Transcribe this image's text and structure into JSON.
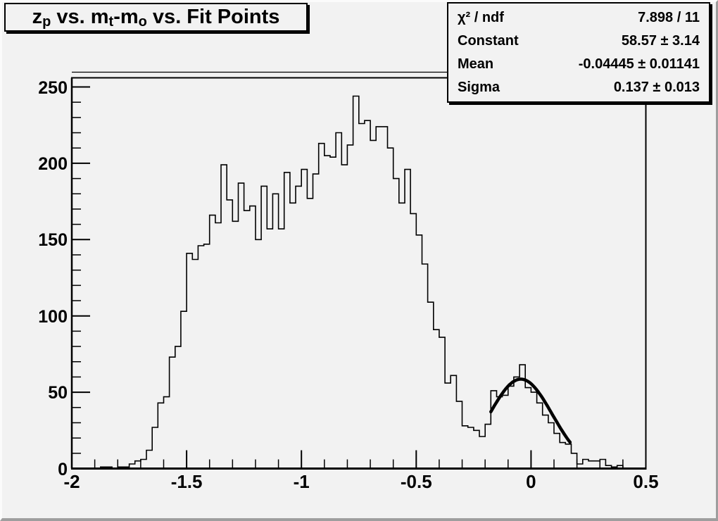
{
  "colors": {
    "background": "#f2f2f2",
    "foreground": "#000000",
    "bevel_dark": "#9e9e9e",
    "bevel_light": "#fbfbfb"
  },
  "title": {
    "full_text": "z_p vs. m_t-m_o vs. Fit Points",
    "parts": [
      {
        "text": "z",
        "sub": false
      },
      {
        "text": "p",
        "sub": true
      },
      {
        "text": " vs. m",
        "sub": false
      },
      {
        "text": "t",
        "sub": true
      },
      {
        "text": "-m",
        "sub": false
      },
      {
        "text": "o",
        "sub": true
      },
      {
        "text": " vs. Fit Points",
        "sub": false
      }
    ]
  },
  "stats": {
    "rows": [
      {
        "label": "χ² / ndf",
        "value": "7.898 / 11"
      },
      {
        "label": "Constant",
        "value": "58.57 ± 3.14"
      },
      {
        "label": "Mean",
        "value": "-0.04445 ± 0.01141"
      },
      {
        "label": "Sigma",
        "value": "0.137 ± 0.013"
      }
    ]
  },
  "chart_data": {
    "type": "bar",
    "subtype": "step-histogram",
    "title": "z_p vs. m_t-m_o vs. Fit Points",
    "xlabel": "",
    "ylabel": "",
    "xlim": [
      -2.0,
      0.5
    ],
    "ylim": [
      0,
      256
    ],
    "grid": false,
    "legend_position": "none",
    "x_ticks": [
      {
        "value": -2,
        "label": "-2"
      },
      {
        "value": -1.5,
        "label": "-1.5"
      },
      {
        "value": -1,
        "label": "-1"
      },
      {
        "value": -0.5,
        "label": "-0.5"
      },
      {
        "value": 0,
        "label": "0"
      },
      {
        "value": 0.5,
        "label": "0.5"
      }
    ],
    "y_ticks": [
      {
        "value": 0,
        "label": "0"
      },
      {
        "value": 50,
        "label": "50"
      },
      {
        "value": 100,
        "label": "100"
      },
      {
        "value": 150,
        "label": "150"
      },
      {
        "value": 200,
        "label": "200"
      },
      {
        "value": 250,
        "label": "250"
      }
    ],
    "x_minor_step": 0.1,
    "y_minor_step": 10,
    "bin_start": -2.0,
    "bin_width": 0.025,
    "bin_counts": [
      0,
      0,
      0,
      0,
      0,
      1,
      1,
      0,
      1,
      1,
      3,
      5,
      6,
      12,
      27,
      43,
      47,
      73,
      80,
      103,
      141,
      137,
      146,
      147,
      166,
      161,
      199,
      176,
      162,
      187,
      169,
      172,
      150,
      185,
      157,
      180,
      157,
      194,
      174,
      185,
      196,
      177,
      193,
      213,
      205,
      204,
      220,
      199,
      212,
      244,
      226,
      228,
      215,
      224,
      224,
      210,
      190,
      174,
      196,
      167,
      153,
      134,
      109,
      91,
      86,
      56,
      61,
      44,
      28,
      27,
      25,
      21,
      29,
      51,
      47,
      48,
      54,
      60,
      68,
      53,
      50,
      43,
      35,
      30,
      23,
      17,
      16,
      10,
      3,
      6,
      5,
      5,
      6,
      2,
      1,
      2,
      0,
      0,
      0,
      0
    ],
    "fit": {
      "type": "gaussian",
      "constant": 58.57,
      "mean": -0.04445,
      "sigma": 0.137,
      "range": [
        -0.175,
        0.17
      ]
    }
  }
}
